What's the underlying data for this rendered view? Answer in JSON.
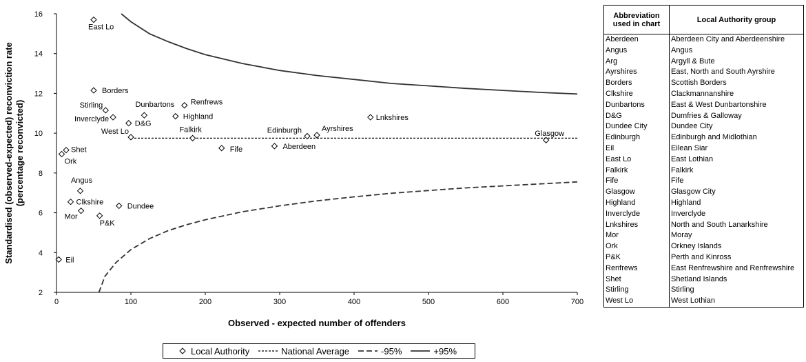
{
  "chart_data": {
    "type": "scatter",
    "xlabel": "Observed - expected number of offenders",
    "ylabel_line1": "Standardised (observed-expected) reconviction rate",
    "ylabel_line2": "(percentage reconvicted)",
    "xlim": [
      0,
      700
    ],
    "ylim": [
      2,
      16
    ],
    "xticks": [
      0,
      100,
      200,
      300,
      400,
      500,
      600,
      700
    ],
    "yticks": [
      2,
      4,
      6,
      8,
      10,
      12,
      14,
      16
    ],
    "grid": false,
    "legend_position": "bottom",
    "national_average": 9.75,
    "points": [
      {
        "label": "East Lo",
        "x": 50,
        "y": 15.7
      },
      {
        "label": "Borders",
        "x": 50,
        "y": 12.15
      },
      {
        "label": "Stirling",
        "x": 66,
        "y": 11.15
      },
      {
        "label": "Inverclyde",
        "x": 76,
        "y": 10.8
      },
      {
        "label": "Dunbartons",
        "x": 118,
        "y": 10.9
      },
      {
        "label": "Renfrews",
        "x": 172,
        "y": 11.4
      },
      {
        "label": "Highland",
        "x": 160,
        "y": 10.85
      },
      {
        "label": "D&G",
        "x": 97,
        "y": 10.5
      },
      {
        "label": "West Lo",
        "x": 100,
        "y": 9.8
      },
      {
        "label": "Falkirk",
        "x": 183,
        "y": 9.75
      },
      {
        "label": "Fife",
        "x": 222,
        "y": 9.25
      },
      {
        "label": "Edinburgh",
        "x": 337,
        "y": 9.85
      },
      {
        "label": "Ayrshires",
        "x": 350,
        "y": 9.9
      },
      {
        "label": "Aberdeen",
        "x": 293,
        "y": 9.35
      },
      {
        "label": "Lnkshires",
        "x": 422,
        "y": 10.8
      },
      {
        "label": "Glasgow",
        "x": 658,
        "y": 9.65
      },
      {
        "label": "Shet",
        "x": 13,
        "y": 9.15
      },
      {
        "label": "Ork",
        "x": 7,
        "y": 8.95
      },
      {
        "label": "Angus",
        "x": 32,
        "y": 7.1
      },
      {
        "label": "Clkshire",
        "x": 19,
        "y": 6.55
      },
      {
        "label": "Mor",
        "x": 33,
        "y": 6.1
      },
      {
        "label": "Dundee",
        "x": 84,
        "y": 6.35
      },
      {
        "label": "P&K",
        "x": 58,
        "y": 5.85
      },
      {
        "label": "Eil",
        "x": 3,
        "y": 3.65
      }
    ],
    "upper_95": [
      [
        87,
        16.0
      ],
      [
        100,
        15.6
      ],
      [
        125,
        15.0
      ],
      [
        150,
        14.6
      ],
      [
        175,
        14.25
      ],
      [
        200,
        13.95
      ],
      [
        250,
        13.5
      ],
      [
        300,
        13.15
      ],
      [
        350,
        12.9
      ],
      [
        400,
        12.7
      ],
      [
        450,
        12.5
      ],
      [
        500,
        12.38
      ],
      [
        550,
        12.25
      ],
      [
        600,
        12.15
      ],
      [
        650,
        12.05
      ],
      [
        700,
        11.97
      ]
    ],
    "lower_95": [
      [
        57,
        2.0
      ],
      [
        65,
        2.8
      ],
      [
        80,
        3.5
      ],
      [
        100,
        4.15
      ],
      [
        125,
        4.7
      ],
      [
        150,
        5.1
      ],
      [
        175,
        5.4
      ],
      [
        200,
        5.65
      ],
      [
        250,
        6.05
      ],
      [
        300,
        6.35
      ],
      [
        350,
        6.6
      ],
      [
        400,
        6.8
      ],
      [
        450,
        6.98
      ],
      [
        500,
        7.12
      ],
      [
        550,
        7.25
      ],
      [
        600,
        7.35
      ],
      [
        650,
        7.45
      ],
      [
        700,
        7.55
      ]
    ]
  },
  "legend": {
    "local_authority": "Local Authority",
    "national_average": "National Average",
    "minus95": "-95%",
    "plus95": "+95%"
  },
  "table": {
    "header_col1": "Abbreviation used in chart",
    "header_col2": "Local Authority group",
    "rows": [
      [
        "Aberdeen",
        "Aberdeen City and Aberdeenshire"
      ],
      [
        "Angus",
        "Angus"
      ],
      [
        "Arg",
        "Argyll & Bute"
      ],
      [
        "Ayrshires",
        "East, North and South Ayrshire"
      ],
      [
        "Borders",
        "Scottish Borders"
      ],
      [
        "Clkshire",
        "Clackmannanshire"
      ],
      [
        "Dunbartons",
        "East & West Dunbartonshire"
      ],
      [
        "D&G",
        "Dumfries & Galloway"
      ],
      [
        "Dundee City",
        "Dundee City"
      ],
      [
        "Edinburgh",
        "Edinburgh and Midlothian"
      ],
      [
        "Eil",
        "Eilean Siar"
      ],
      [
        "East Lo",
        "East Lothian"
      ],
      [
        "Falkirk",
        "Falkirk"
      ],
      [
        "Fife",
        "Fife"
      ],
      [
        "Glasgow",
        "Glasgow City"
      ],
      [
        "Highland",
        "Highland"
      ],
      [
        "Inverclyde",
        "Inverclyde"
      ],
      [
        "Lnkshires",
        "North and South Lanarkshire"
      ],
      [
        "Mor",
        "Moray"
      ],
      [
        "Ork",
        "Orkney Islands"
      ],
      [
        "P&K",
        "Perth and Kinross"
      ],
      [
        "Renfrews",
        "East Renfrewshire and Renfrewshire"
      ],
      [
        "Shet",
        "Shetland Islands"
      ],
      [
        "Stirling",
        "Stirling"
      ],
      [
        "West Lo",
        "West Lothian"
      ]
    ]
  }
}
